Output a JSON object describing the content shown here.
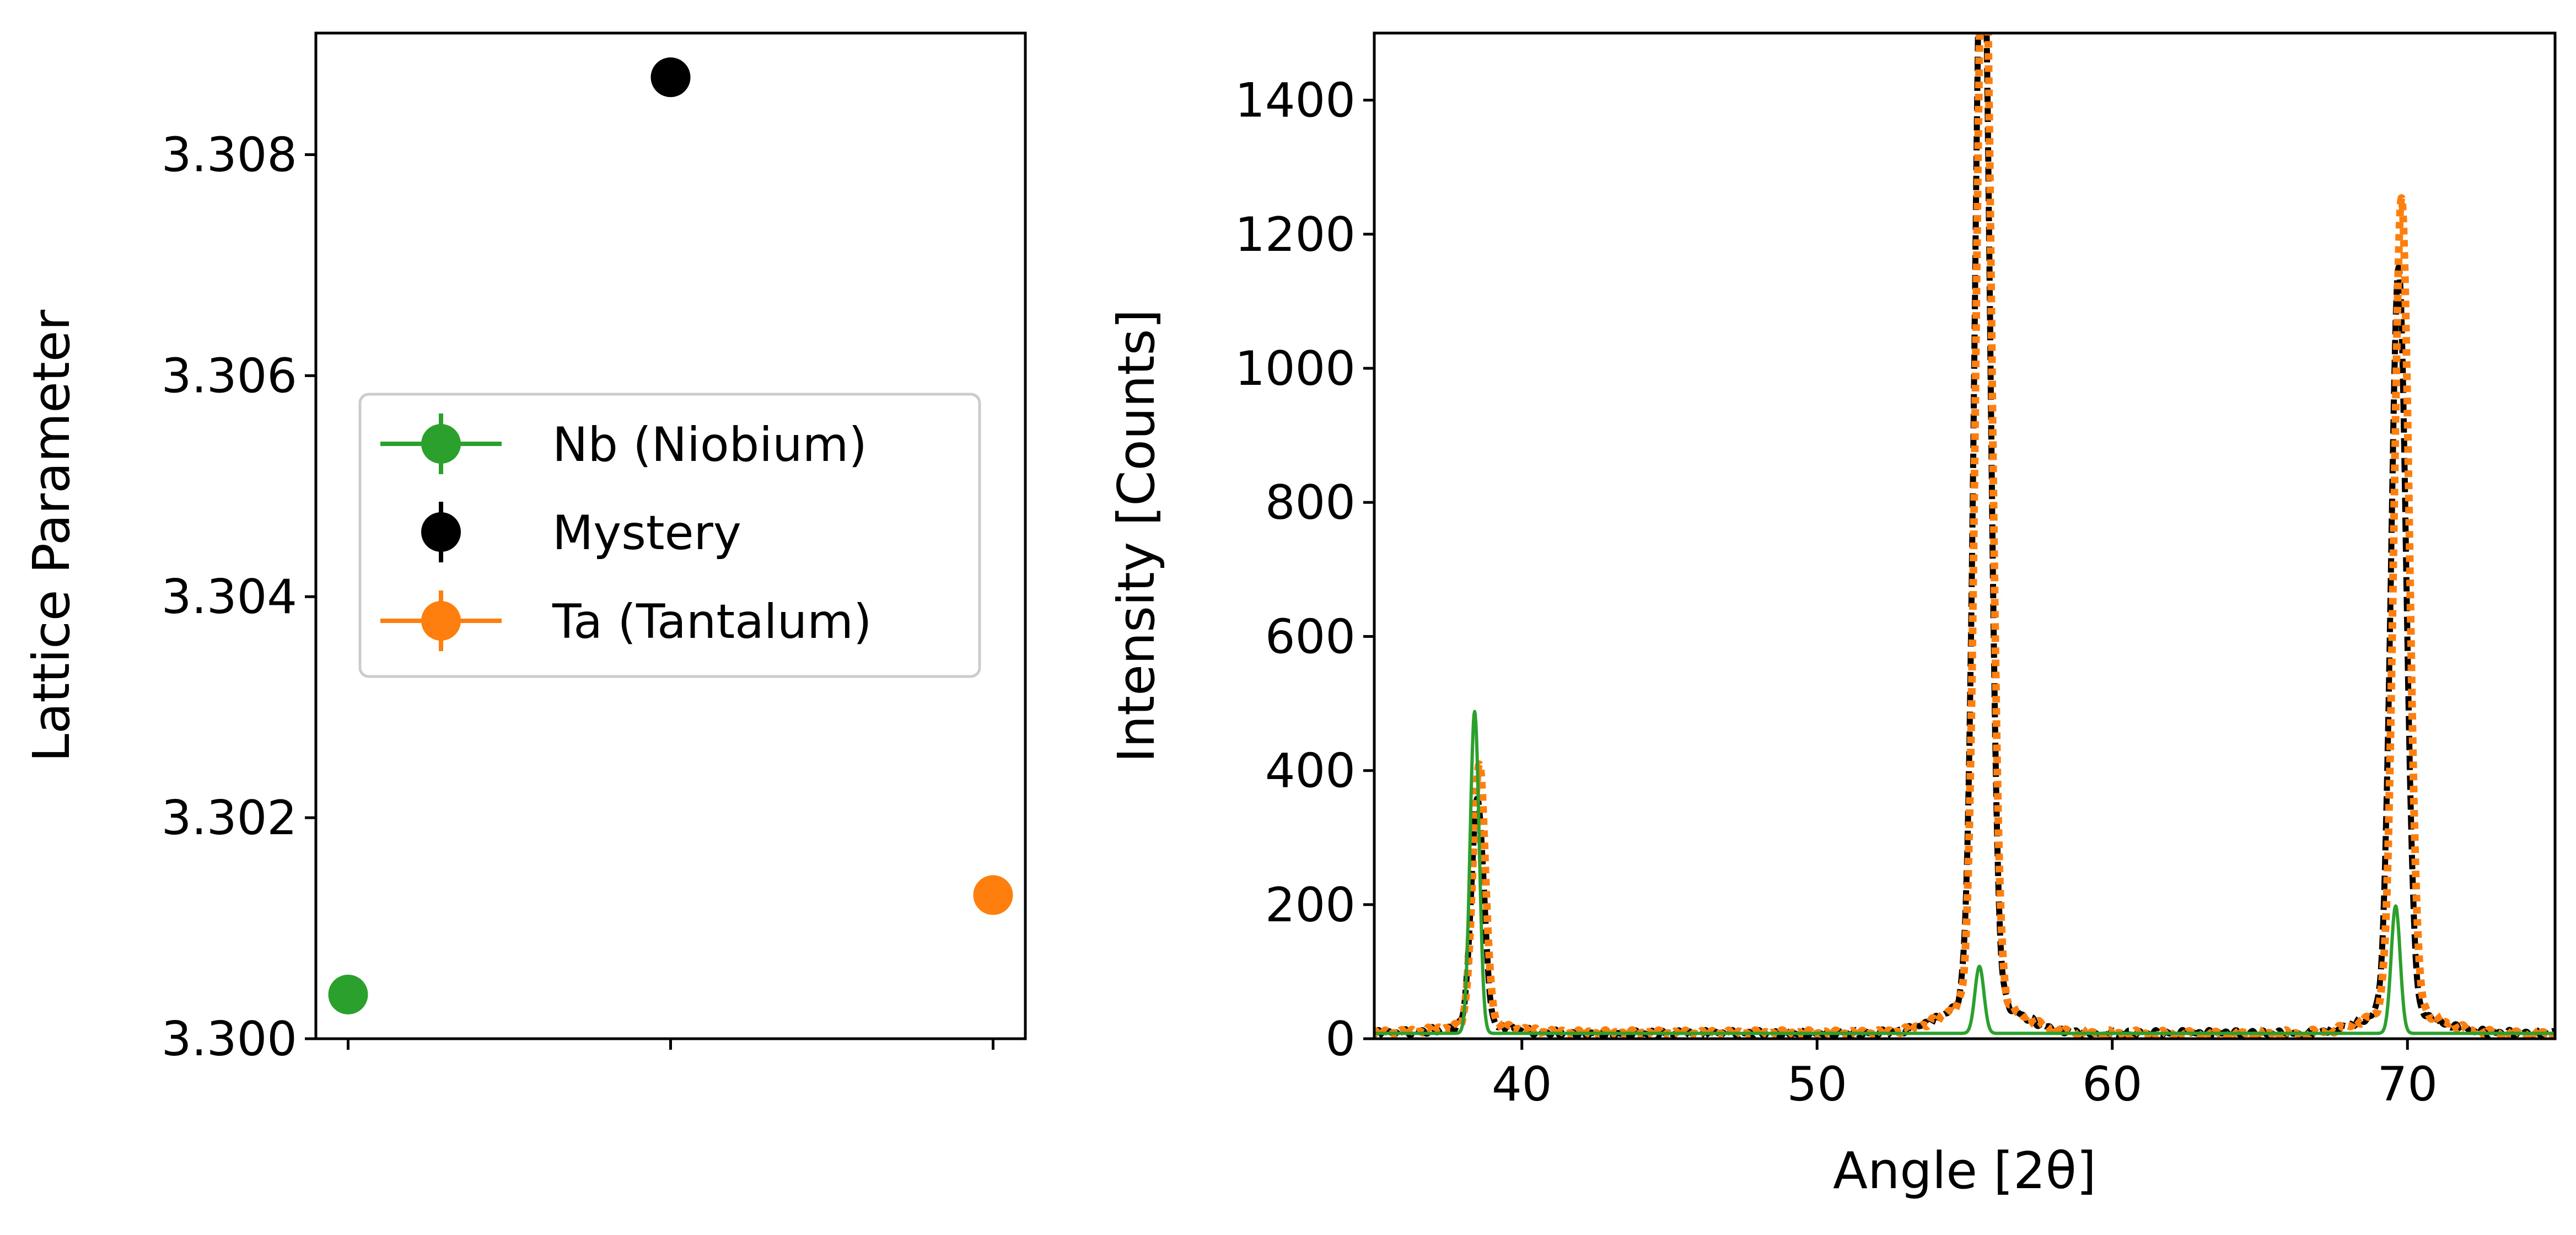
{
  "chart_data": [
    {
      "type": "scatter",
      "ylabel": "Lattice Parameter",
      "xlabel": "",
      "ylim": [
        3.3,
        3.3091
      ],
      "xlim": [
        -0.1,
        2.1
      ],
      "yticks": [
        "3.300",
        "3.302",
        "3.304",
        "3.306",
        "3.308"
      ],
      "xtick_positions": [
        0,
        1,
        2
      ],
      "grid": false,
      "legend_position": "center-left",
      "series": [
        {
          "name": "Nb (Niobium)",
          "color": "#2ca02c",
          "x": 0,
          "y": 3.3004,
          "legend_style": "line-marker"
        },
        {
          "name": "Mystery",
          "color": "#000000",
          "x": 1,
          "y": 3.3087,
          "legend_style": "marker"
        },
        {
          "name": "Ta (Tantalum)",
          "color": "#ff7f0e",
          "x": 2,
          "y": 3.3013,
          "legend_style": "line-marker"
        }
      ]
    },
    {
      "type": "line",
      "xlabel": "Angle [2θ]",
      "ylabel": "Intensity [Counts]",
      "xlim": [
        35,
        75
      ],
      "ylim": [
        0,
        1500
      ],
      "xticks": [
        "40",
        "50",
        "60",
        "70"
      ],
      "yticks": [
        "0",
        "200",
        "400",
        "600",
        "800",
        "1000",
        "1200",
        "1400"
      ],
      "grid": false,
      "baseline": 8,
      "series": [
        {
          "color": "#000000",
          "style": "dashed",
          "peaks": [
            [
              38.5,
              340,
              0.25
            ],
            [
              55.6,
              1700,
              0.3
            ],
            [
              69.7,
              1110,
              0.3
            ]
          ]
        },
        {
          "color": "#ff7f0e",
          "style": "dotted",
          "peaks": [
            [
              38.55,
              390,
              0.25
            ],
            [
              55.65,
              1700,
              0.3
            ],
            [
              69.8,
              1210,
              0.3
            ]
          ]
        },
        {
          "color": "#2ca02c",
          "style": "solid",
          "peaks": [
            [
              38.4,
              480,
              0.18
            ],
            [
              55.5,
              100,
              0.18
            ],
            [
              69.6,
              190,
              0.18
            ]
          ]
        }
      ]
    }
  ]
}
